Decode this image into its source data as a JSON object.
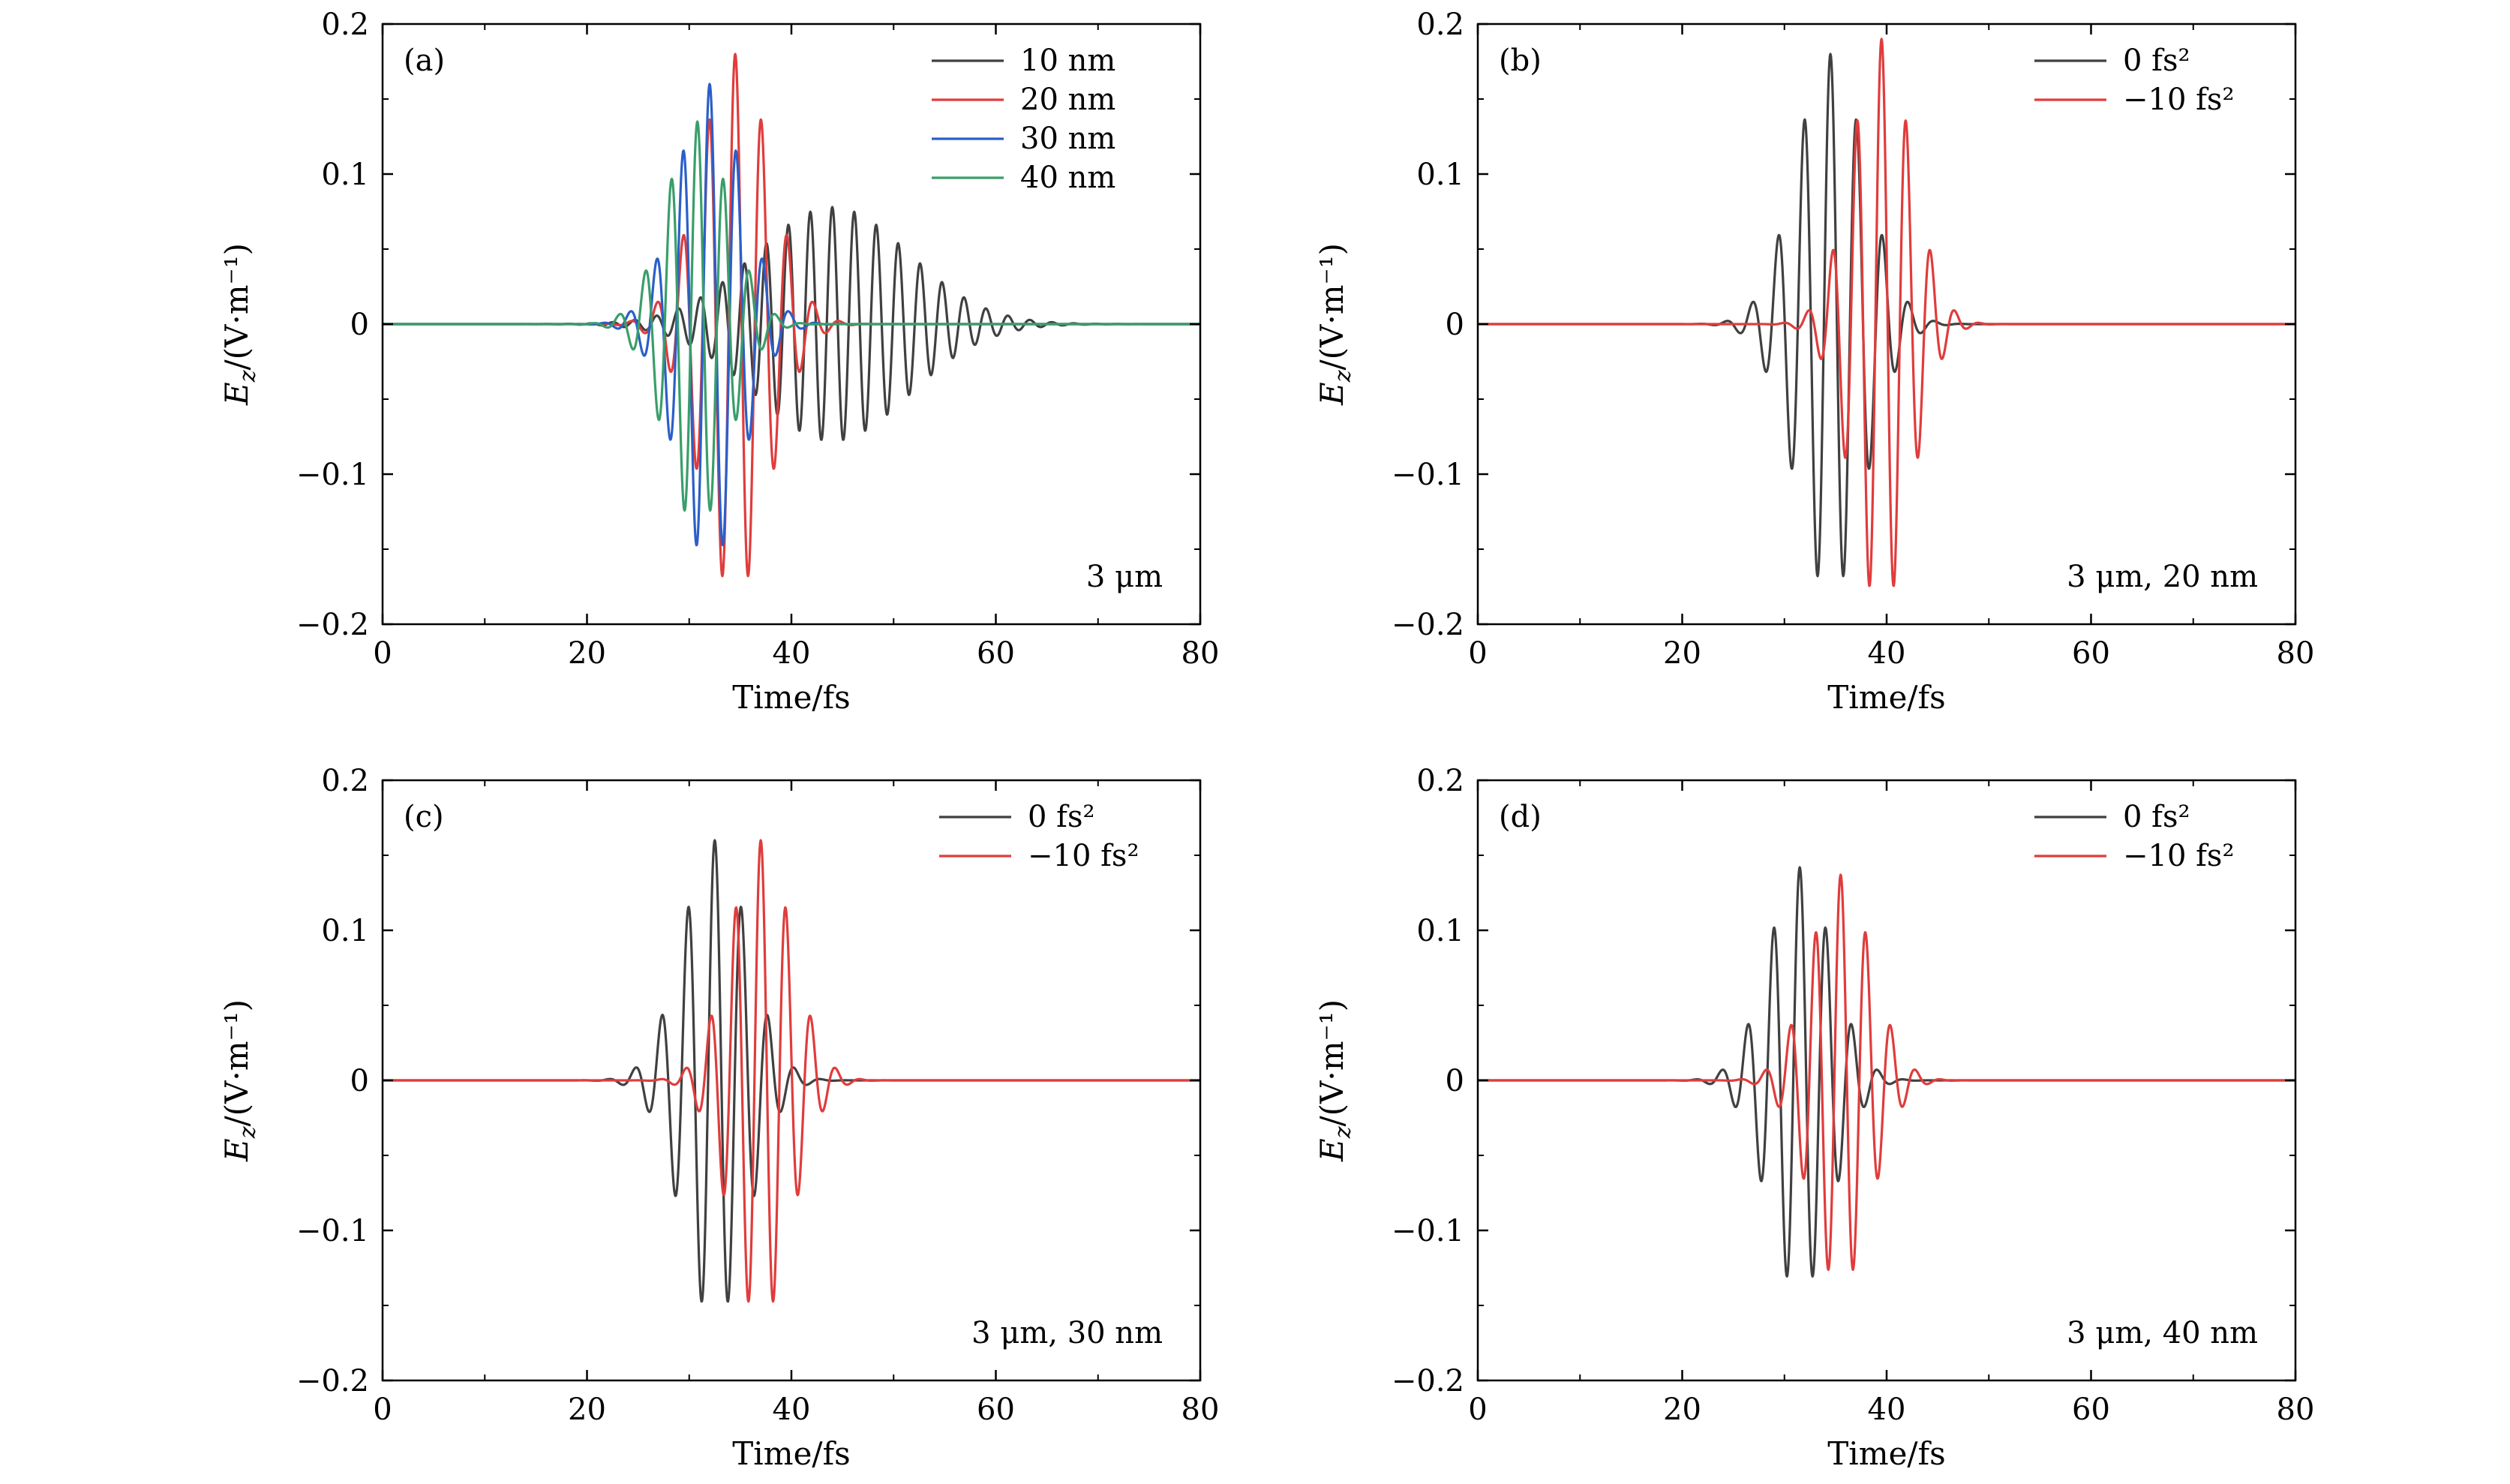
{
  "chart_data": [
    {
      "type": "line",
      "panel": "(a)",
      "xlabel": "Time/fs",
      "ylabel": "E_z/(V·m⁻¹)",
      "xlim": [
        0,
        80
      ],
      "ylim": [
        -0.2,
        0.2
      ],
      "xticks": [
        0,
        20,
        40,
        60,
        80
      ],
      "yticks": [
        -0.2,
        -0.1,
        0,
        0.1,
        0.2
      ],
      "ytick_labels": [
        "−0.2",
        "−0.1",
        "0",
        "0.1",
        "0.2"
      ],
      "annotation": "3 μm",
      "legend_position": "top-right",
      "series": [
        {
          "name": "10 nm",
          "color": "#404040",
          "center": 44.0,
          "sigma": 7.5,
          "amplitude": 0.078,
          "period": 2.15,
          "phase": 0.0
        },
        {
          "name": "20 nm",
          "color": "#e03c3c",
          "center": 34.5,
          "sigma": 3.4,
          "amplitude": 0.18,
          "period": 2.55,
          "phase": 0.0
        },
        {
          "name": "30 nm",
          "color": "#2b5fc8",
          "center": 32.0,
          "sigma": 3.2,
          "amplitude": 0.16,
          "period": 2.6,
          "phase": 0.0
        },
        {
          "name": "40 nm",
          "color": "#3a9e6a",
          "center": 30.8,
          "sigma": 3.1,
          "amplitude": 0.135,
          "period": 2.55,
          "phase": 0.0
        }
      ]
    },
    {
      "type": "line",
      "panel": "(b)",
      "xlabel": "Time/fs",
      "ylabel": "E_z/(V·m⁻¹)",
      "xlim": [
        0,
        80
      ],
      "ylim": [
        -0.2,
        0.2
      ],
      "xticks": [
        0,
        20,
        40,
        60,
        80
      ],
      "yticks": [
        -0.2,
        -0.1,
        0,
        0.1,
        0.2
      ],
      "ytick_labels": [
        "−0.2",
        "−0.1",
        "0",
        "0.1",
        "0.2"
      ],
      "annotation": "3 μm, 20 nm",
      "legend_position": "top-right",
      "series": [
        {
          "name": "0 fs²",
          "color": "#404040",
          "center": 34.5,
          "sigma": 3.4,
          "amplitude": 0.18,
          "period": 2.55,
          "phase": 0.0
        },
        {
          "name": "−10 fs²",
          "color": "#e03c3c",
          "center": 39.5,
          "sigma": 2.9,
          "amplitude": 0.19,
          "period": 2.4,
          "phase": 0.0
        }
      ]
    },
    {
      "type": "line",
      "panel": "(c)",
      "xlabel": "Time/fs",
      "ylabel": "E_z/(V·m⁻¹)",
      "xlim": [
        0,
        80
      ],
      "ylim": [
        -0.2,
        0.2
      ],
      "xticks": [
        0,
        20,
        40,
        60,
        80
      ],
      "yticks": [
        -0.2,
        -0.1,
        0,
        0.1,
        0.2
      ],
      "ytick_labels": [
        "−0.2",
        "−0.1",
        "0",
        "0.1",
        "0.2"
      ],
      "annotation": "3 μm, 30 nm",
      "legend_position": "top-right",
      "series": [
        {
          "name": "0 fs²",
          "color": "#404040",
          "center": 32.5,
          "sigma": 3.2,
          "amplitude": 0.16,
          "period": 2.6,
          "phase": 0.0
        },
        {
          "name": "−10 fs²",
          "color": "#e03c3c",
          "center": 37.0,
          "sigma": 3.0,
          "amplitude": 0.16,
          "period": 2.45,
          "phase": 0.0
        }
      ]
    },
    {
      "type": "line",
      "panel": "(d)",
      "xlabel": "Time/fs",
      "ylabel": "E_z/(V·m⁻¹)",
      "xlim": [
        0,
        80
      ],
      "ylim": [
        -0.2,
        0.2
      ],
      "xticks": [
        0,
        20,
        40,
        60,
        80
      ],
      "yticks": [
        -0.2,
        -0.1,
        0,
        0.1,
        0.2
      ],
      "ytick_labels": [
        "−0.2",
        "−0.1",
        "0",
        "0.1",
        "0.2"
      ],
      "annotation": "3 μm, 40 nm",
      "legend_position": "top-right",
      "series": [
        {
          "name": "0 fs²",
          "color": "#404040",
          "center": 31.5,
          "sigma": 3.1,
          "amplitude": 0.142,
          "period": 2.55,
          "phase": 0.0
        },
        {
          "name": "−10 fs²",
          "color": "#e03c3c",
          "center": 35.5,
          "sigma": 3.0,
          "amplitude": 0.137,
          "period": 2.45,
          "phase": 0.0
        }
      ]
    }
  ]
}
